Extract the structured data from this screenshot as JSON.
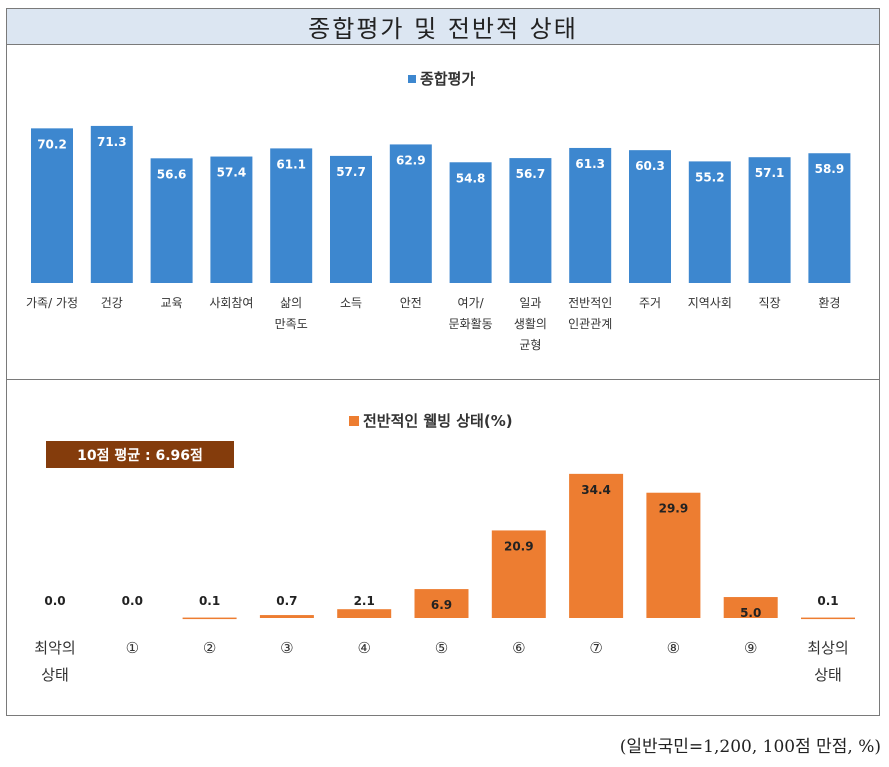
{
  "title": "종합평가 및 전반적 상태",
  "footnote": "(일반국민=1,200, 100점 만점, %)",
  "colors": {
    "blue": "#3d87cf",
    "orange": "#ed7d31",
    "avg_box": "#843c0c",
    "title_bg": "#dce6f2"
  },
  "chart_data": [
    {
      "type": "bar",
      "legend": "종합평가",
      "legend_position": "top-center",
      "grid": false,
      "ylim": [
        0,
        80
      ],
      "categories": [
        [
          "가족/ 가정"
        ],
        [
          "건강"
        ],
        [
          "교육"
        ],
        [
          "사회참여"
        ],
        [
          "삶의",
          "만족도"
        ],
        [
          "소득"
        ],
        [
          "안전"
        ],
        [
          "여가/",
          "문화활동"
        ],
        [
          "일과",
          "생활의",
          "균형"
        ],
        [
          "전반적인",
          "인관관계"
        ],
        [
          "주거"
        ],
        [
          "지역사회"
        ],
        [
          "직장"
        ],
        [
          "환경"
        ]
      ],
      "values": [
        70.2,
        71.3,
        56.6,
        57.4,
        61.1,
        57.7,
        62.9,
        54.8,
        56.7,
        61.3,
        60.3,
        55.2,
        57.1,
        58.9
      ],
      "labels": [
        "70.2",
        "71.3",
        "56.6",
        "57.4",
        "61.1",
        "57.7",
        "62.9",
        "54.8",
        "56.7",
        "61.3",
        "60.3",
        "55.2",
        "57.1",
        "58.9"
      ]
    },
    {
      "type": "bar",
      "legend": "전반적인 웰빙 상태(%)",
      "legend_position": "top-center",
      "grid": false,
      "annotation": "10점 평균 : 6.96점",
      "ylim": [
        0,
        40
      ],
      "categories": [
        [
          "최악의",
          "상태"
        ],
        [
          "①"
        ],
        [
          "②"
        ],
        [
          "③"
        ],
        [
          "④"
        ],
        [
          "⑤"
        ],
        [
          "⑥"
        ],
        [
          "⑦"
        ],
        [
          "⑧"
        ],
        [
          "⑨"
        ],
        [
          "최상의",
          "상태"
        ]
      ],
      "values": [
        0.0,
        0.0,
        0.1,
        0.7,
        2.1,
        6.9,
        20.9,
        34.4,
        29.9,
        5.0,
        0.1
      ],
      "labels": [
        "0.0",
        "0.0",
        "0.1",
        "0.7",
        "2.1",
        "6.9",
        "20.9",
        "34.4",
        "29.9",
        "5.0",
        "0.1"
      ]
    }
  ]
}
